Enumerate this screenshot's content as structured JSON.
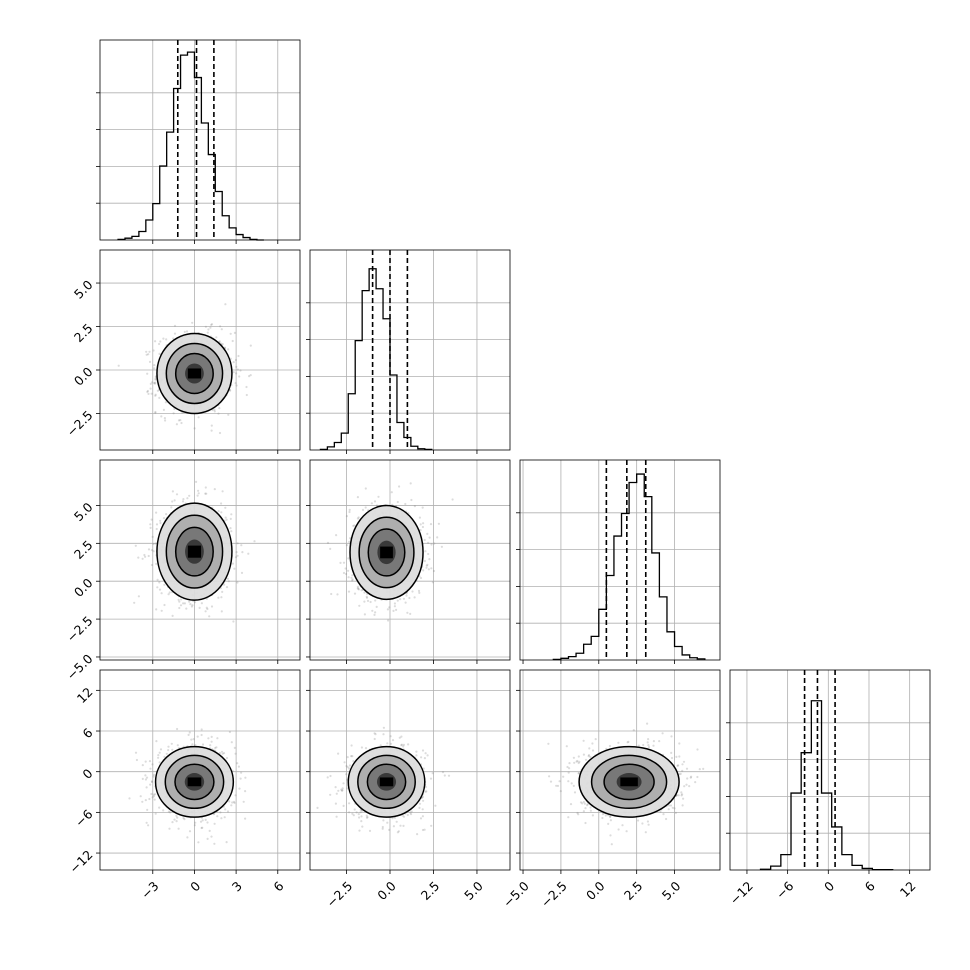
{
  "chart_data": {
    "type": "corner",
    "title": "",
    "parameters": [
      {
        "index": 0,
        "axis_range": [
          -6.8,
          7.6
        ],
        "ticks": [
          -3,
          0,
          3,
          6
        ],
        "tick_labels": [
          "−3",
          "0",
          "3",
          "6"
        ],
        "histogram": {
          "bin_start": -5.5,
          "bin_width": 0.5,
          "counts": [
            1,
            3,
            6,
            14,
            33,
            60,
            122,
            178,
            250,
            305,
            310,
            268,
            193,
            141,
            80,
            40,
            20,
            9,
            4,
            1,
            0
          ],
          "ylim": [
            0,
            330
          ],
          "quantiles": [
            -1.2,
            0.15,
            1.4
          ]
        }
      },
      {
        "index": 1,
        "axis_range": [
          -4.6,
          6.9
        ],
        "ticks": [
          -2.5,
          0.0,
          2.5,
          5.0
        ],
        "tick_labels": [
          "−2.5",
          "0.0",
          "2.5",
          "5.0"
        ],
        "histogram": {
          "bin_start": -4.0,
          "bin_width": 0.4,
          "counts": [
            1,
            5,
            12,
            27,
            90,
            175,
            255,
            290,
            258,
            210,
            120,
            44,
            20,
            6,
            2,
            1
          ],
          "ylim": [
            0,
            320
          ],
          "quantiles": [
            -1.0,
            0.0,
            1.0
          ]
        }
      },
      {
        "index": 2,
        "axis_range": [
          -5.2,
          8.0
        ],
        "ticks": [
          -5.0,
          -2.5,
          0.0,
          2.5,
          5.0
        ],
        "tick_labels": [
          "−5.0",
          "−2.5",
          "0.0",
          "2.5",
          "5.0"
        ],
        "histogram": {
          "bin_start": -3.0,
          "bin_width": 0.5,
          "counts": [
            1,
            3,
            6,
            12,
            28,
            42,
            90,
            150,
            220,
            260,
            315,
            330,
            290,
            190,
            112,
            50,
            24,
            9,
            4,
            2
          ],
          "ylim": [
            0,
            355
          ],
          "quantiles": [
            0.5,
            1.85,
            3.1
          ]
        }
      },
      {
        "index": 3,
        "axis_range": [
          -14.5,
          15.0
        ],
        "ticks": [
          -12,
          -6,
          0,
          6,
          12
        ],
        "tick_labels": [
          "−12",
          "−6",
          "0",
          "6",
          "12"
        ],
        "histogram": {
          "bin_start": -10.0,
          "bin_width": 1.5,
          "counts": [
            2,
            10,
            40,
            200,
            305,
            440,
            200,
            112,
            40,
            12,
            4,
            1,
            1
          ],
          "ylim": [
            0,
            520
          ],
          "quantiles": [
            -3.5,
            -1.6,
            1.0
          ]
        }
      }
    ],
    "pairs": [
      {
        "x_param": 0,
        "y_param": 1,
        "mean": [
          0.0,
          -0.2
        ],
        "std": [
          1.35,
          1.15
        ],
        "corr": 0.02
      },
      {
        "x_param": 0,
        "y_param": 2,
        "mean": [
          0.0,
          1.95
        ],
        "std": [
          1.35,
          1.6
        ],
        "corr": 0.0
      },
      {
        "x_param": 1,
        "y_param": 2,
        "mean": [
          -0.2,
          1.9
        ],
        "std": [
          1.05,
          1.55
        ],
        "corr": 0.02
      },
      {
        "x_param": 0,
        "y_param": 3,
        "mean": [
          0.0,
          -1.5
        ],
        "std": [
          1.4,
          2.6
        ],
        "corr": 0.0
      },
      {
        "x_param": 1,
        "y_param": 3,
        "mean": [
          -0.2,
          -1.5
        ],
        "std": [
          1.1,
          2.6
        ],
        "corr": 0.0
      },
      {
        "x_param": 2,
        "y_param": 3,
        "mean": [
          2.0,
          -1.5
        ],
        "std": [
          1.65,
          2.6
        ],
        "corr": 0.0
      }
    ],
    "contour_levels_sigma": [
      0.5,
      1.0,
      1.5,
      2.0
    ],
    "grid": true,
    "colors": {
      "samples": "#808080",
      "density": "#000000",
      "grid": "#b0b0b0"
    }
  }
}
